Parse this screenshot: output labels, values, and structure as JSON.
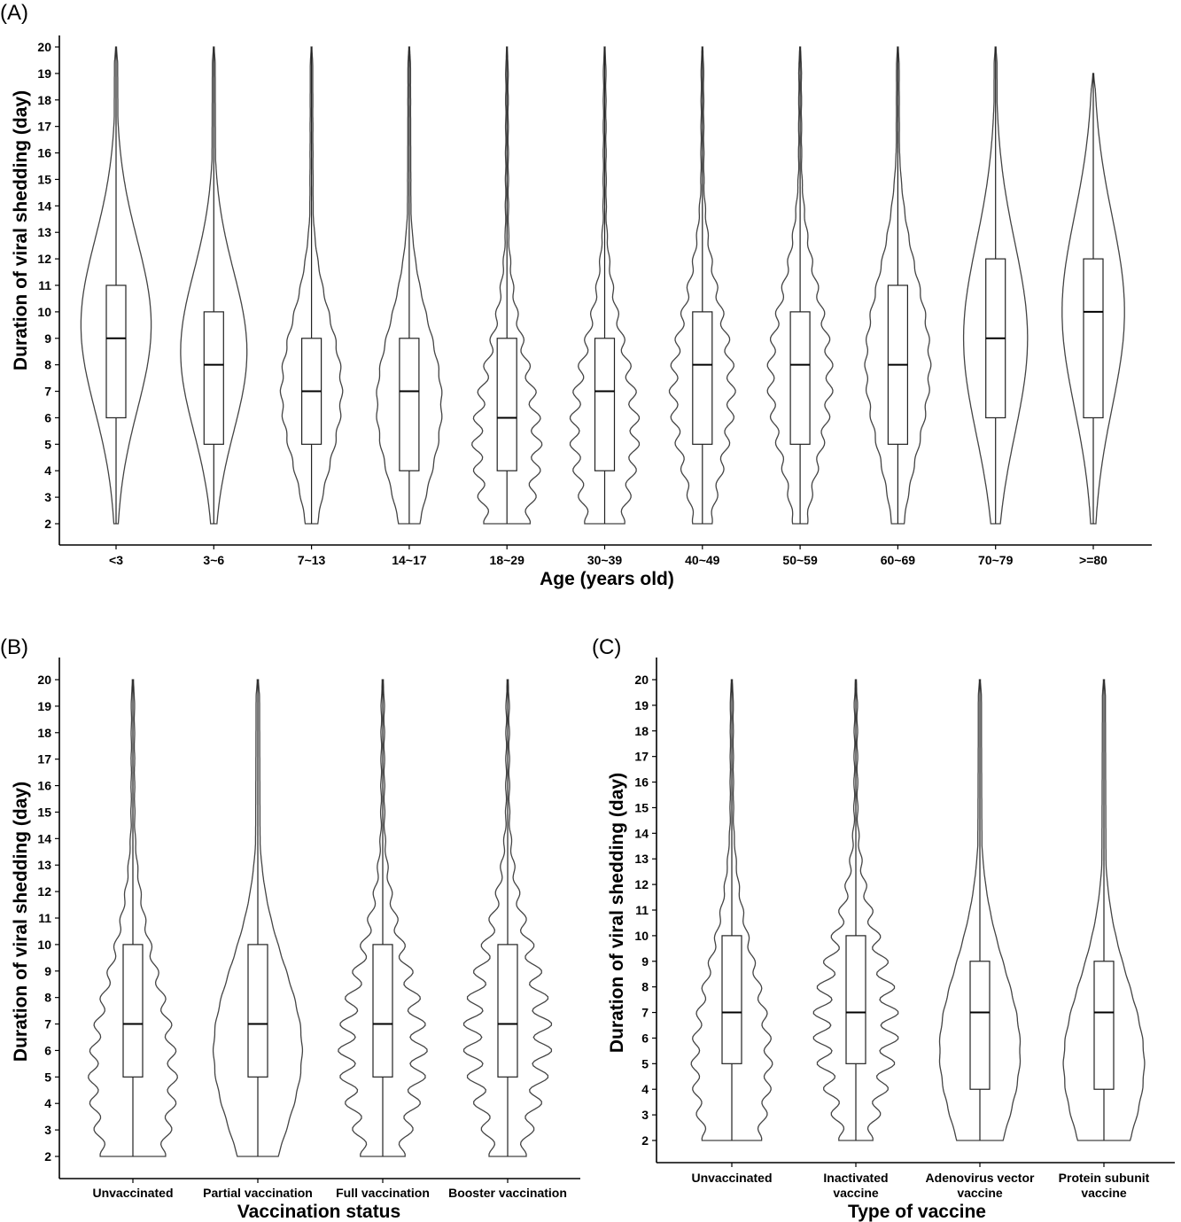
{
  "chart_data": [
    {
      "panel_label": "(A)",
      "type": "violin",
      "xlabel": "Age (years old)",
      "ylabel": "Duration of viral shedding (day)",
      "ylim": [
        2,
        20
      ],
      "yticks": [
        2,
        3,
        4,
        5,
        6,
        7,
        8,
        9,
        10,
        11,
        12,
        13,
        14,
        15,
        16,
        17,
        18,
        19,
        20
      ],
      "categories": [
        {
          "label": [
            "<3"
          ],
          "min": 2,
          "q1": 6,
          "median": 9,
          "q3": 11,
          "max": 20,
          "peak": 9.5,
          "width": 0.9,
          "spread": 3.2,
          "wiggle": 0
        },
        {
          "label": [
            "3~6"
          ],
          "min": 2,
          "q1": 5,
          "median": 8,
          "q3": 10,
          "max": 20,
          "peak": 8.5,
          "width": 0.85,
          "spread": 3.0,
          "wiggle": 0
        },
        {
          "label": [
            "7~13"
          ],
          "min": 2,
          "q1": 5,
          "median": 7,
          "q3": 9,
          "max": 20,
          "peak": 7,
          "width": 0.8,
          "spread": 2.8,
          "wiggle": 0.08
        },
        {
          "label": [
            "14~17"
          ],
          "min": 2,
          "q1": 4,
          "median": 7,
          "q3": 9,
          "max": 20,
          "peak": 6.5,
          "width": 0.85,
          "spread": 3.0,
          "wiggle": 0.05
        },
        {
          "label": [
            "18~29"
          ],
          "min": 2,
          "q1": 4,
          "median": 6,
          "q3": 9,
          "max": 20,
          "peak": 5,
          "width": 0.9,
          "spread": 3.3,
          "wiggle": 0.3
        },
        {
          "label": [
            "30~39"
          ],
          "min": 2,
          "q1": 4,
          "median": 7,
          "q3": 9,
          "max": 20,
          "peak": 5.5,
          "width": 0.9,
          "spread": 3.3,
          "wiggle": 0.28
        },
        {
          "label": [
            "40~49"
          ],
          "min": 2,
          "q1": 5,
          "median": 8,
          "q3": 10,
          "max": 20,
          "peak": 7,
          "width": 0.85,
          "spread": 3.2,
          "wiggle": 0.25
        },
        {
          "label": [
            "50~59"
          ],
          "min": 2,
          "q1": 5,
          "median": 8,
          "q3": 10,
          "max": 20,
          "peak": 7.5,
          "width": 0.85,
          "spread": 3.2,
          "wiggle": 0.22
        },
        {
          "label": [
            "60~69"
          ],
          "min": 2,
          "q1": 5,
          "median": 8,
          "q3": 11,
          "max": 20,
          "peak": 8,
          "width": 0.85,
          "spread": 3.3,
          "wiggle": 0.08
        },
        {
          "label": [
            "70~79"
          ],
          "min": 2,
          "q1": 6,
          "median": 9,
          "q3": 12,
          "max": 20,
          "peak": 9,
          "width": 0.82,
          "spread": 3.6,
          "wiggle": 0
        },
        {
          "label": [
            ">=80"
          ],
          "min": 2,
          "q1": 6,
          "median": 10,
          "q3": 12,
          "max": 19,
          "peak": 10,
          "width": 0.8,
          "spread": 3.6,
          "wiggle": 0
        }
      ]
    },
    {
      "panel_label": "(B)",
      "type": "violin",
      "xlabel": "Vaccination status",
      "ylabel": "Duration of viral shedding (day)",
      "ylim": [
        2,
        20
      ],
      "yticks": [
        2,
        3,
        4,
        5,
        6,
        7,
        8,
        9,
        10,
        11,
        12,
        13,
        14,
        15,
        16,
        17,
        18,
        19,
        20
      ],
      "categories": [
        {
          "label": [
            "Unvaccinated"
          ],
          "min": 2,
          "q1": 5,
          "median": 7,
          "q3": 10,
          "max": 20,
          "peak": 5,
          "width": 0.9,
          "spread": 3.8,
          "wiggle": 0.22
        },
        {
          "label": [
            "Partial vaccination"
          ],
          "min": 2,
          "q1": 5,
          "median": 7,
          "q3": 10,
          "max": 20,
          "peak": 6,
          "width": 0.9,
          "spread": 3.2,
          "wiggle": 0.02
        },
        {
          "label": [
            "Full vaccination"
          ],
          "min": 2,
          "q1": 5,
          "median": 7,
          "q3": 10,
          "max": 20,
          "peak": 6,
          "width": 0.9,
          "spread": 3.4,
          "wiggle": 0.38
        },
        {
          "label": [
            "Booster vaccination"
          ],
          "min": 2,
          "q1": 5,
          "median": 7,
          "q3": 10,
          "max": 20,
          "peak": 6.5,
          "width": 0.9,
          "spread": 3.4,
          "wiggle": 0.42
        }
      ]
    },
    {
      "panel_label": "(C)",
      "type": "violin",
      "xlabel": "Type of vaccine",
      "ylabel": "Duration of viral shedding (day)",
      "ylim": [
        2,
        20
      ],
      "yticks": [
        2,
        3,
        4,
        5,
        6,
        7,
        8,
        9,
        10,
        11,
        12,
        13,
        14,
        15,
        16,
        17,
        18,
        19,
        20
      ],
      "categories": [
        {
          "label": [
            "Unvaccinated"
          ],
          "min": 2,
          "q1": 5,
          "median": 7,
          "q3": 10,
          "max": 20,
          "peak": 5,
          "width": 0.85,
          "spread": 3.8,
          "wiggle": 0.2
        },
        {
          "label": [
            "Inactivated",
            "vaccine"
          ],
          "min": 2,
          "q1": 5,
          "median": 7,
          "q3": 10,
          "max": 20,
          "peak": 6.5,
          "width": 0.9,
          "spread": 3.3,
          "wiggle": 0.42
        },
        {
          "label": [
            "Adenovirus vector",
            "vaccine"
          ],
          "min": 2,
          "q1": 4,
          "median": 7,
          "q3": 9,
          "max": 20,
          "peak": 5.5,
          "width": 0.85,
          "spread": 3.3,
          "wiggle": 0.02
        },
        {
          "label": [
            "Protein subunit",
            "vaccine"
          ],
          "min": 2,
          "q1": 4,
          "median": 7,
          "q3": 9,
          "max": 20,
          "peak": 5,
          "width": 0.85,
          "spread": 3.2,
          "wiggle": 0.02
        }
      ]
    }
  ]
}
